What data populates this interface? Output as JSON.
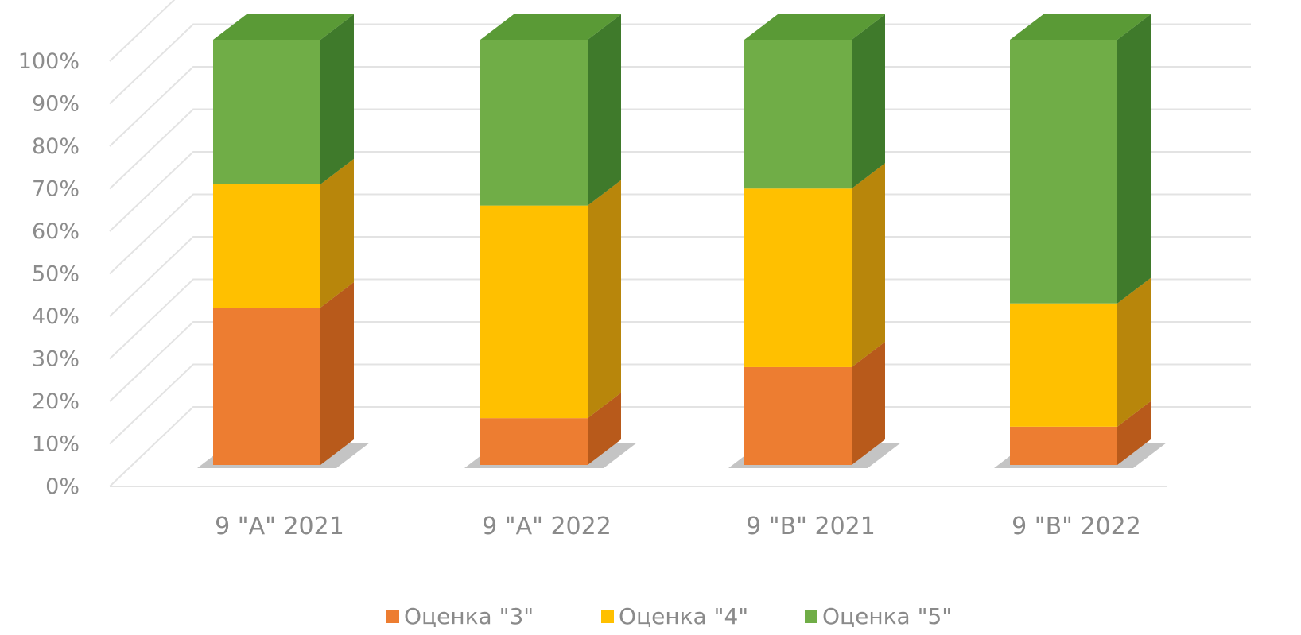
{
  "chart_data": {
    "type": "bar",
    "stacked": true,
    "normalized_percent": true,
    "three_d": true,
    "title": "",
    "xlabel": "",
    "ylabel": "",
    "categories": [
      "9 \"А\" 2021",
      "9 \"А\" 2022",
      "9 \"В\" 2021",
      "9 \"В\" 2022"
    ],
    "series": [
      {
        "name": "Оценка \"3\"",
        "values": [
          37,
          11,
          23,
          9
        ],
        "color": "#ed7d31",
        "side_color": "#b85a1b"
      },
      {
        "name": "Оценка \"4\"",
        "values": [
          29,
          50,
          42,
          29
        ],
        "color": "#ffc000",
        "side_color": "#b8860b"
      },
      {
        "name": "Оценка \"5\"",
        "values": [
          34,
          39,
          35,
          62
        ],
        "color": "#70ad47",
        "side_color": "#3f7a2b"
      }
    ],
    "ylim": [
      0,
      100
    ],
    "yticks": [
      "0%",
      "10%",
      "20%",
      "30%",
      "40%",
      "50%",
      "60%",
      "70%",
      "80%",
      "90%",
      "100%"
    ],
    "grid": true,
    "legend_position": "bottom"
  }
}
